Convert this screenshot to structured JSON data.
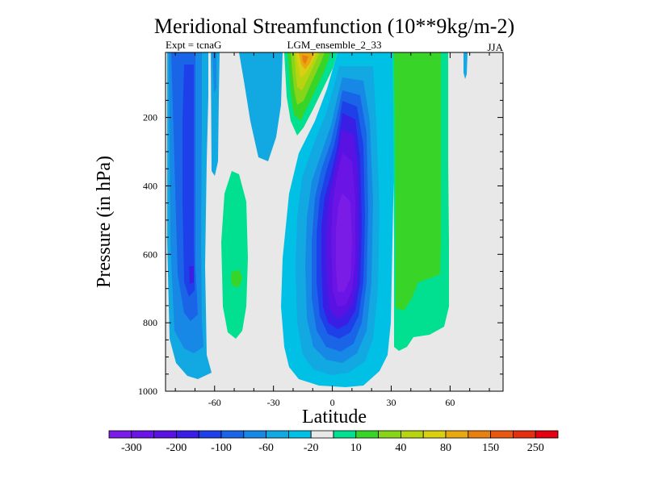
{
  "chart_data": {
    "type": "heatmap",
    "title": "Meridional Streamfunction (10**9kg/m-2)",
    "subtitle_left": "Expt = tcnaG",
    "subtitle_center": "LGM_ensemble_2_33",
    "subtitle_right": "JJA",
    "xlabel": "Latitude",
    "ylabel": "Pressure (in hPa)",
    "x_ticks": [
      -60,
      -30,
      0,
      30,
      60
    ],
    "y_ticks": [
      200,
      400,
      600,
      800,
      1000
    ],
    "xlim": [
      -85,
      87
    ],
    "ylim": [
      1000,
      10
    ],
    "y_inverted": true,
    "colorbar": {
      "labels": [
        "-300",
        "-200",
        "-100",
        "-60",
        "-20",
        "10",
        "40",
        "80",
        "150",
        "250"
      ],
      "colors": [
        "#7a1ce6",
        "#6a14e6",
        "#5a12e2",
        "#3a1ee6",
        "#1e40e8",
        "#1a64e8",
        "#1888e6",
        "#12a8e2",
        "#00c0e6",
        "#e8e8e8",
        "#00e090",
        "#38d428",
        "#88d418",
        "#b8d410",
        "#d8d010",
        "#e8a810",
        "#e88010",
        "#e85810",
        "#e43010",
        "#e40010"
      ]
    },
    "features": [
      {
        "name": "southern-hemisphere-cell",
        "sign": "negative",
        "lat_range": [
          -85,
          -58
        ],
        "pressure_range": [
          10,
          960
        ],
        "peak": "-60 to -100"
      },
      {
        "name": "southern-positive-cell",
        "sign": "positive",
        "lat_range": [
          -57,
          -45
        ],
        "pressure_range": [
          360,
          840
        ],
        "peak": "10 to 40"
      },
      {
        "name": "hadley-cell-negative",
        "sign": "negative",
        "lat_range": [
          -17,
          22
        ],
        "pressure_range": [
          10,
          990
        ],
        "peak": "-200 to -300"
      },
      {
        "name": "upper-positive-plume",
        "sign": "positive",
        "lat_range": [
          -24,
          -5
        ],
        "pressure_range": [
          10,
          280
        ],
        "peak": "80 to 150"
      },
      {
        "name": "northern-positive-cell",
        "sign": "positive",
        "lat_range": [
          30,
          55
        ],
        "pressure_range": [
          10,
          880
        ],
        "peak": "10 to 40"
      }
    ]
  }
}
